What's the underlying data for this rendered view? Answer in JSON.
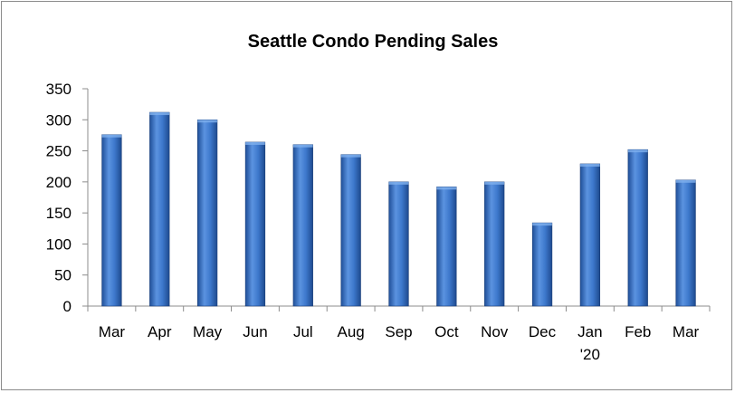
{
  "chart_data": {
    "type": "bar",
    "title": "Seattle Condo Pending Sales",
    "categories": [
      {
        "label": "Mar",
        "sublabel": ""
      },
      {
        "label": "Apr",
        "sublabel": ""
      },
      {
        "label": "May",
        "sublabel": ""
      },
      {
        "label": "Jun",
        "sublabel": ""
      },
      {
        "label": "Jul",
        "sublabel": ""
      },
      {
        "label": "Aug",
        "sublabel": ""
      },
      {
        "label": "Sep",
        "sublabel": ""
      },
      {
        "label": "Oct",
        "sublabel": ""
      },
      {
        "label": "Nov",
        "sublabel": ""
      },
      {
        "label": "Dec",
        "sublabel": ""
      },
      {
        "label": "Jan",
        "sublabel": "'20"
      },
      {
        "label": "Feb",
        "sublabel": ""
      },
      {
        "label": "Mar",
        "sublabel": ""
      }
    ],
    "values": [
      276,
      312,
      300,
      264,
      260,
      244,
      200,
      192,
      200,
      134,
      229,
      252,
      203
    ],
    "ylim": [
      0,
      350
    ],
    "yticks": [
      "0",
      "50",
      "100",
      "150",
      "200",
      "250",
      "300",
      "350"
    ],
    "grid": false,
    "legend": "none",
    "bar_color": "#3a73c4"
  }
}
